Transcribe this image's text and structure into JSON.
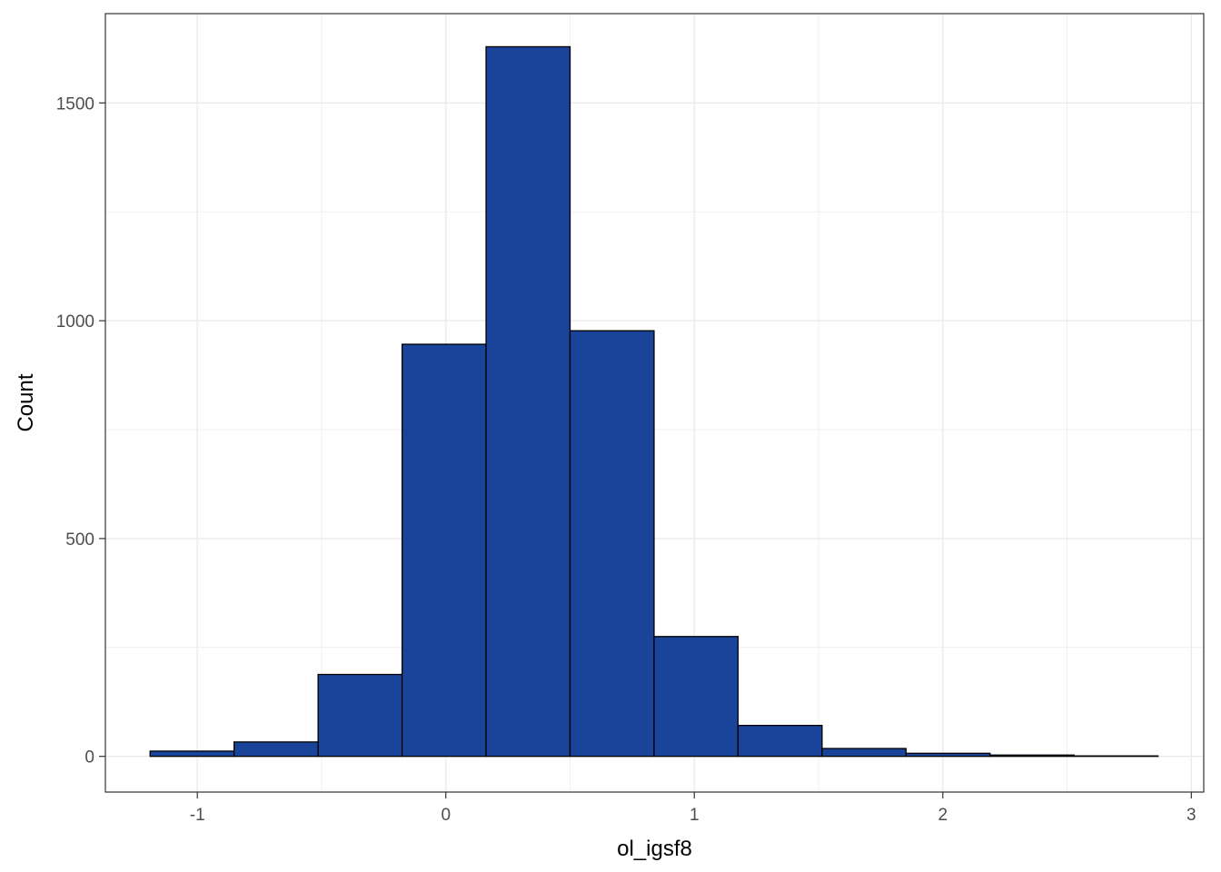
{
  "chart_data": {
    "type": "bar",
    "subtype": "histogram",
    "xlabel": "ol_igsf8",
    "ylabel": "Count",
    "xlim": [
      -1.37,
      3.05
    ],
    "ylim": [
      -82,
      1705
    ],
    "x_ticks": [
      -1,
      0,
      1,
      2,
      3
    ],
    "x_tick_labels": [
      "-1",
      "0",
      "1",
      "2",
      "3"
    ],
    "y_ticks": [
      0,
      500,
      1000,
      1500
    ],
    "y_tick_labels": [
      "0",
      "500",
      "1000",
      "1500"
    ],
    "y_minor_ticks": [
      250,
      750,
      1250
    ],
    "bin_width": 0.338,
    "bins": [
      {
        "x0": -1.19,
        "x1": -0.852,
        "count": 12
      },
      {
        "x0": -0.852,
        "x1": -0.514,
        "count": 33
      },
      {
        "x0": -0.514,
        "x1": -0.176,
        "count": 188
      },
      {
        "x0": -0.176,
        "x1": 0.162,
        "count": 946
      },
      {
        "x0": 0.162,
        "x1": 0.5,
        "count": 1629
      },
      {
        "x0": 0.5,
        "x1": 0.838,
        "count": 977
      },
      {
        "x0": 0.838,
        "x1": 1.176,
        "count": 275
      },
      {
        "x0": 1.176,
        "x1": 1.514,
        "count": 71
      },
      {
        "x0": 1.514,
        "x1": 1.852,
        "count": 18
      },
      {
        "x0": 1.852,
        "x1": 2.19,
        "count": 7
      },
      {
        "x0": 2.19,
        "x1": 2.528,
        "count": 3
      },
      {
        "x0": 2.528,
        "x1": 2.866,
        "count": 1
      }
    ],
    "grid": true,
    "legend": "none",
    "colors": {
      "fill": "#1a449a",
      "outline": "#000000",
      "grid": "#ebebeb",
      "panel_border": "#333333"
    }
  }
}
